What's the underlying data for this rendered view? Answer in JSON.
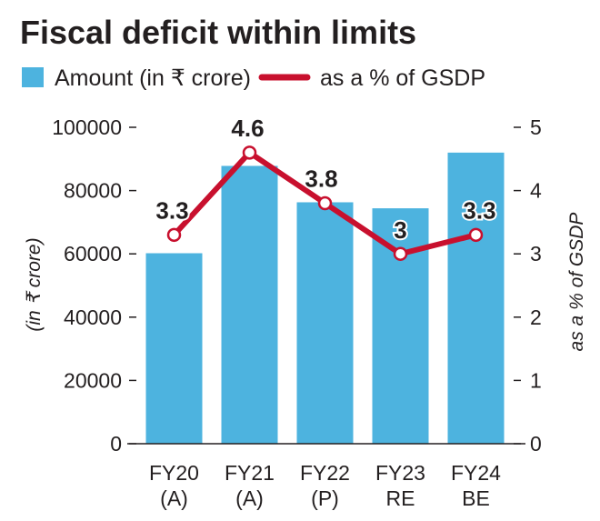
{
  "chart_data": {
    "type": "bar",
    "title": "Fiscal deficit within limits",
    "categories": [
      [
        "FY20",
        "(A)"
      ],
      [
        "FY21",
        "(A)"
      ],
      [
        "FY22",
        "(P)"
      ],
      [
        "FY23",
        "RE"
      ],
      [
        "FY24",
        "BE"
      ]
    ],
    "series": [
      {
        "name": "Amount (in ₹ crore)",
        "type": "bar",
        "axis": "left",
        "values": [
          60200,
          87800,
          76300,
          74400,
          92000
        ]
      },
      {
        "name": "as a % of GSDP",
        "type": "line",
        "axis": "right",
        "values": [
          3.3,
          4.6,
          3.8,
          3,
          3.3
        ],
        "labels": [
          "3.3",
          "4.6",
          "3.8",
          "3",
          "3.3"
        ]
      }
    ],
    "ylabel": "(in ₹ crore)",
    "y2label": "as a % of GSDP",
    "ylim": [
      0,
      100000
    ],
    "y2lim": [
      0,
      5
    ],
    "yticks": [
      "0",
      "20000",
      "40000",
      "60000",
      "80000",
      "100000"
    ],
    "y2ticks": [
      "0",
      "1",
      "2",
      "3",
      "4",
      "5"
    ],
    "legend_position": "top-left",
    "grid": false,
    "colors": {
      "bar": "#4db3df",
      "line": "#c8102e",
      "text": "#231f20"
    }
  }
}
